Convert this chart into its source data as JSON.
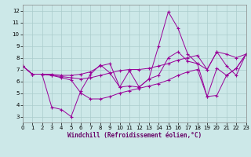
{
  "xlabel": "Windchill (Refroidissement éolien,°C)",
  "xlim": [
    0,
    23
  ],
  "ylim": [
    2.5,
    12.5
  ],
  "yticks": [
    3,
    4,
    5,
    6,
    7,
    8,
    9,
    10,
    11,
    12
  ],
  "xticks": [
    0,
    1,
    2,
    3,
    4,
    5,
    6,
    7,
    8,
    9,
    10,
    11,
    12,
    13,
    14,
    15,
    16,
    17,
    18,
    19,
    20,
    21,
    22,
    23
  ],
  "bg_color": "#cce8e8",
  "grid_color": "#aacccc",
  "line_color": "#990099",
  "line1_x": [
    0,
    1,
    2,
    3,
    4,
    5,
    6,
    7,
    8,
    9,
    10,
    11,
    12,
    13,
    14,
    15,
    16,
    17,
    18,
    19,
    20,
    21,
    22,
    23
  ],
  "line1_y": [
    7.3,
    6.6,
    6.6,
    3.8,
    3.6,
    3.0,
    5.2,
    6.6,
    7.4,
    6.7,
    5.5,
    6.9,
    5.5,
    6.2,
    9.0,
    11.9,
    10.5,
    8.3,
    7.5,
    4.7,
    7.1,
    6.5,
    7.1,
    8.3
  ],
  "line2_x": [
    0,
    1,
    2,
    3,
    4,
    5,
    6,
    7,
    8,
    9,
    10,
    11,
    12,
    13,
    14,
    15,
    16,
    17,
    18,
    19,
    20,
    21,
    22,
    23
  ],
  "line2_y": [
    7.3,
    6.6,
    6.6,
    6.6,
    6.5,
    6.5,
    6.6,
    6.8,
    7.3,
    7.5,
    5.5,
    5.6,
    5.5,
    6.2,
    6.5,
    8.0,
    8.5,
    7.7,
    7.5,
    7.0,
    8.5,
    7.3,
    6.5,
    8.3
  ],
  "line3_x": [
    0,
    1,
    2,
    3,
    4,
    5,
    6,
    7,
    8,
    9,
    10,
    11,
    12,
    13,
    14,
    15,
    16,
    17,
    18,
    19,
    20,
    21,
    22,
    23
  ],
  "line3_y": [
    7.3,
    6.6,
    6.6,
    6.5,
    6.4,
    6.3,
    6.2,
    6.3,
    6.5,
    6.7,
    6.9,
    7.0,
    7.0,
    7.1,
    7.3,
    7.5,
    7.8,
    8.0,
    8.2,
    7.0,
    8.5,
    8.3,
    8.0,
    8.3
  ],
  "line4_x": [
    0,
    1,
    2,
    3,
    4,
    5,
    6,
    7,
    8,
    9,
    10,
    11,
    12,
    13,
    14,
    15,
    16,
    17,
    18,
    19,
    20,
    21,
    22,
    23
  ],
  "line4_y": [
    7.3,
    6.6,
    6.6,
    6.5,
    6.3,
    6.1,
    5.0,
    4.5,
    4.5,
    4.7,
    5.0,
    5.2,
    5.4,
    5.6,
    5.8,
    6.1,
    6.5,
    6.8,
    7.0,
    4.7,
    4.8,
    6.5,
    7.1,
    8.3
  ]
}
